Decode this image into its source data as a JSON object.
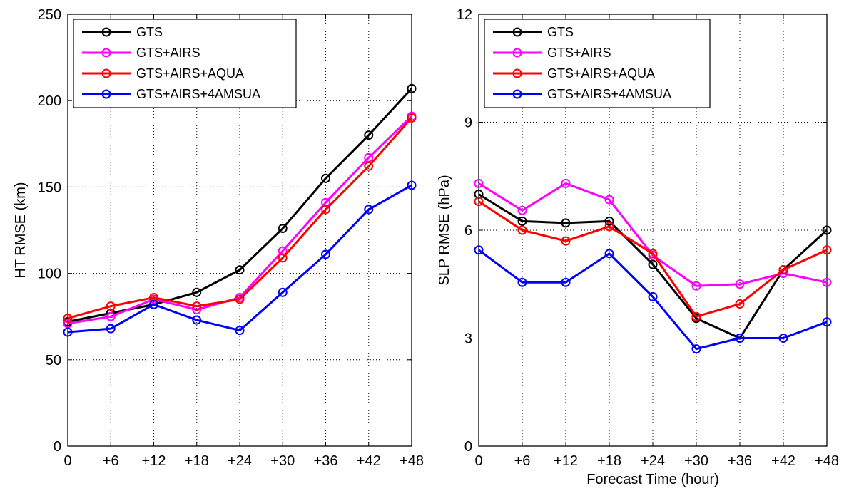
{
  "chart_data": [
    {
      "type": "line",
      "title": "",
      "xlabel": "",
      "ylabel": "HT RMSE (km)",
      "categories": [
        "0",
        "+6",
        "+12",
        "+18",
        "+24",
        "+30",
        "+36",
        "+42",
        "+48"
      ],
      "ylim": [
        0,
        250
      ],
      "yticks": [
        0,
        50,
        100,
        150,
        200,
        250
      ],
      "grid": true,
      "legend": "top-left",
      "series": [
        {
          "name": "GTS",
          "color": "#000000",
          "values": [
            72,
            77,
            82,
            89,
            102,
            126,
            155,
            180,
            207
          ]
        },
        {
          "name": "GTS+AIRS",
          "color": "#ff00ff",
          "values": [
            71,
            75,
            85,
            79,
            86,
            113,
            141,
            167,
            191
          ]
        },
        {
          "name": "GTS+AIRS+AQUA",
          "color": "#ff0000",
          "values": [
            74,
            81,
            86,
            81,
            85,
            109,
            137,
            162,
            190
          ]
        },
        {
          "name": "GTS+AIRS+4AMSUA",
          "color": "#0000ff",
          "values": [
            66,
            68,
            82,
            73,
            67,
            89,
            111,
            137,
            151
          ]
        }
      ]
    },
    {
      "type": "line",
      "title": "",
      "xlabel": "Forecast Time (hour)",
      "ylabel": "SLP RMSE (hPa)",
      "categories": [
        "0",
        "+6",
        "+12",
        "+18",
        "+24",
        "+30",
        "+36",
        "+42",
        "+48"
      ],
      "ylim": [
        0,
        12
      ],
      "yticks": [
        0,
        3,
        6,
        9,
        12
      ],
      "grid": true,
      "legend": "top-left",
      "series": [
        {
          "name": "GTS",
          "color": "#000000",
          "values": [
            7.0,
            6.25,
            6.2,
            6.25,
            5.05,
            3.55,
            3.0,
            4.9,
            6.0
          ]
        },
        {
          "name": "GTS+AIRS",
          "color": "#ff00ff",
          "values": [
            7.3,
            6.55,
            7.3,
            6.85,
            5.3,
            4.45,
            4.5,
            4.8,
            4.55
          ]
        },
        {
          "name": "GTS+AIRS+AQUA",
          "color": "#ff0000",
          "values": [
            6.8,
            6.0,
            5.7,
            6.1,
            5.35,
            3.6,
            3.95,
            4.9,
            5.45
          ]
        },
        {
          "name": "GTS+AIRS+4AMSUA",
          "color": "#0000ff",
          "values": [
            5.45,
            4.55,
            4.55,
            5.35,
            4.15,
            2.7,
            3.0,
            3.0,
            3.45
          ]
        }
      ]
    }
  ]
}
